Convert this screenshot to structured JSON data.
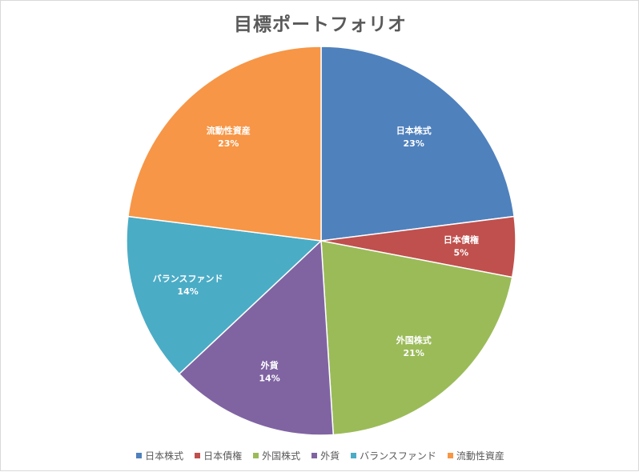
{
  "chart_data": {
    "type": "pie",
    "title": "目標ポートフォリオ",
    "categories": [
      "日本株式",
      "日本債権",
      "外国株式",
      "外貨",
      "バランスファンド",
      "流動性資産"
    ],
    "values": [
      23,
      5,
      21,
      14,
      14,
      23
    ],
    "value_labels": [
      "23%",
      "5%",
      "21%",
      "14%",
      "14%",
      "23%"
    ],
    "colors": [
      "#4f81bd",
      "#c0504d",
      "#9bbb59",
      "#8064a2",
      "#4bacc6",
      "#f79646"
    ],
    "legend_position": "bottom",
    "data_labels": "inside"
  }
}
